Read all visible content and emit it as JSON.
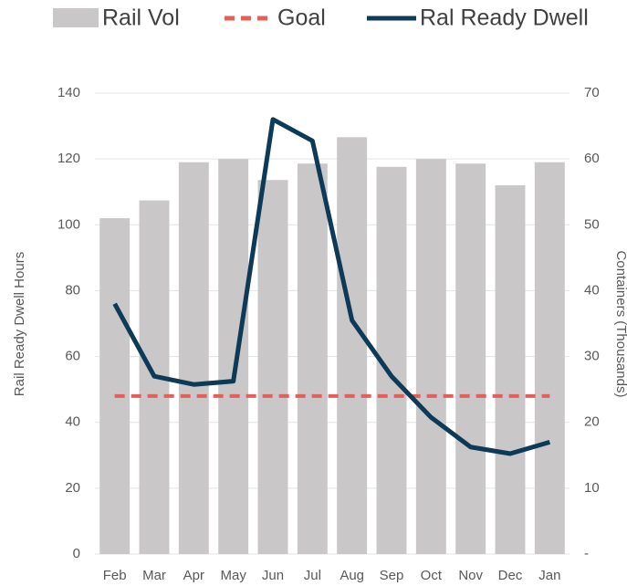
{
  "chart_data": {
    "type": "combo",
    "ylabel": "Rail Ready Dwell Hours",
    "y2label": "Containers (Thousands)",
    "categories": [
      "Feb",
      "Mar",
      "Apr",
      "May",
      "Jun",
      "Jul",
      "Aug",
      "Sep",
      "Oct",
      "Nov",
      "Dec",
      "Jan"
    ],
    "series": [
      {
        "name": "Rail Vol",
        "type": "bar",
        "axis": "y2",
        "color": "#c9c7c8",
        "values": [
          51,
          53.7,
          59.5,
          60,
          56.8,
          59.3,
          63.3,
          58.8,
          60,
          59.3,
          56,
          59.5
        ]
      },
      {
        "name": "Goal",
        "type": "line",
        "dashed": true,
        "color": "#e0605a",
        "values": [
          48,
          48,
          48,
          48,
          48,
          48,
          48,
          48,
          48,
          48,
          48,
          48
        ]
      },
      {
        "name": "Ral Ready Dwell",
        "type": "line",
        "color": "#0d3a56",
        "values": [
          76,
          54,
          51.5,
          52.5,
          132,
          125.5,
          71,
          54,
          41.5,
          32.5,
          30.5,
          34
        ]
      }
    ],
    "ylim": [
      0,
      140
    ],
    "yticks": [
      0,
      20,
      40,
      60,
      80,
      100,
      120,
      140
    ],
    "y2lim": [
      0,
      70
    ],
    "y2ticks": [
      {
        "value": 0,
        "label": "-"
      },
      10,
      20,
      30,
      40,
      50,
      60,
      70
    ],
    "grid": true,
    "legend": "top"
  }
}
